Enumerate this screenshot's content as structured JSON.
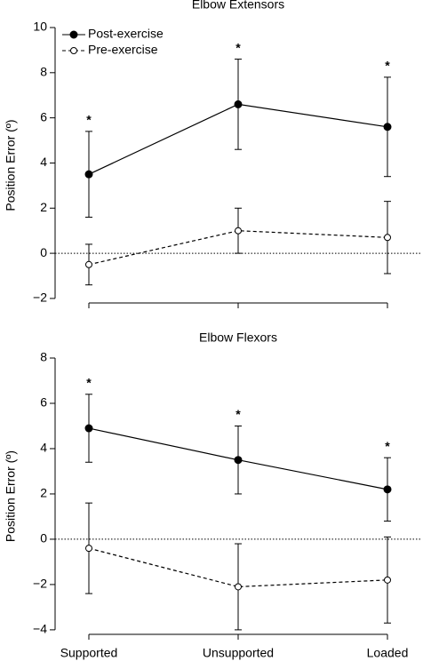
{
  "chart_data": [
    {
      "type": "line",
      "title": "Elbow Extensors",
      "ylabel": "Position Error (º)",
      "categories": [
        null,
        null,
        null
      ],
      "series": [
        {
          "name": "Post-exercise",
          "color": "#000000",
          "style": "solid",
          "marker": "filled",
          "values": [
            3.5,
            6.6,
            5.6
          ],
          "errors": [
            1.9,
            2.0,
            2.2
          ]
        },
        {
          "name": "Pre-exercise",
          "color": "#000000",
          "style": "dashed",
          "marker": "open",
          "values": [
            -0.5,
            1.0,
            0.7
          ],
          "errors": [
            0.9,
            1.0,
            1.6
          ]
        }
      ],
      "significance": [
        "*",
        "*",
        "*"
      ],
      "ylim": [
        -2.2,
        10
      ],
      "yticks": [
        {
          "value": -2,
          "label": "−2"
        },
        0,
        2,
        4,
        6,
        8,
        10
      ],
      "zero_line": true,
      "legend": "upper left"
    },
    {
      "type": "line",
      "title": "Elbow Flexors",
      "ylabel": "Position Error (º)",
      "categories": [
        "Supported",
        "Unsupported",
        "Loaded"
      ],
      "series": [
        {
          "color": "#000000",
          "style": "solid",
          "marker": "filled",
          "values": [
            4.9,
            3.5,
            2.2
          ],
          "errors": [
            1.5,
            1.5,
            1.4
          ]
        },
        {
          "color": "#000000",
          "style": "dashed",
          "marker": "open",
          "values": [
            -0.4,
            -2.1,
            -1.8
          ],
          "errors": [
            2.0,
            1.9,
            1.9
          ]
        }
      ],
      "significance": [
        "*",
        "*",
        "*"
      ],
      "ylim": [
        -4.2,
        8
      ],
      "yticks": [
        {
          "value": -4,
          "label": "−4"
        },
        {
          "value": -2,
          "label": "−2"
        },
        0,
        2,
        4,
        6,
        8
      ],
      "zero_line": true
    }
  ]
}
